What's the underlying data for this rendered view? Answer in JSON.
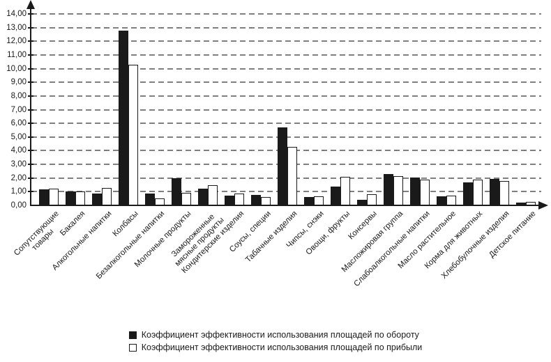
{
  "chart_data": {
    "type": "bar",
    "title": "",
    "xlabel": "",
    "ylabel": "",
    "ylim": [
      0,
      14
    ],
    "ytick_step": 1,
    "grid": "horizontal-dashed",
    "legend_position": "bottom-center",
    "yticklabels": [
      "0,00",
      "1,00",
      "2,00",
      "3,00",
      "4,00",
      "5,00",
      "6,00",
      "7,00",
      "8,00",
      "9,00",
      "10,00",
      "11,00",
      "12,00",
      "13,00",
      "14,00"
    ],
    "categories": [
      "Сопутствующие\nтовары",
      "Бакалея",
      "Алкогольные напитки",
      "Колбасы",
      "Безалкогольные напитки",
      "Молочные продукты",
      "Замороженные\nмясные продукты",
      "Кондитерские изделия",
      "Соусы, специи",
      "Табачные изделия",
      "Чипсы, снэки",
      "Овощи, фрукты",
      "Консервы",
      "Масложировая группа",
      "Слабоалкогольные напитки",
      "Масло растительное",
      "Корма для животных",
      "Хлебобулочные изделия",
      "Детское питание"
    ],
    "series": [
      {
        "name": "Коэффициент эффективности использования площадей по обороту",
        "color": "#1a1a1a",
        "values": [
          1.15,
          1.0,
          0.85,
          12.8,
          0.85,
          2.0,
          1.2,
          0.7,
          0.75,
          5.7,
          0.6,
          1.35,
          0.4,
          2.3,
          2.05,
          0.65,
          1.7,
          1.95,
          0.2
        ]
      },
      {
        "name": "Коэффициент эффективности использования площадей по прибыли",
        "color": "#ffffff",
        "values": [
          1.2,
          1.0,
          1.25,
          10.3,
          0.5,
          0.9,
          1.5,
          0.85,
          0.6,
          4.3,
          0.65,
          2.1,
          0.8,
          2.15,
          1.9,
          0.7,
          1.9,
          1.8,
          0.25
        ]
      }
    ]
  },
  "legend": {
    "items": [
      {
        "swatch": "black-filled-square",
        "label_bind": "series 0 name"
      },
      {
        "swatch": "white-square",
        "label_bind": "series 1 name"
      }
    ]
  }
}
